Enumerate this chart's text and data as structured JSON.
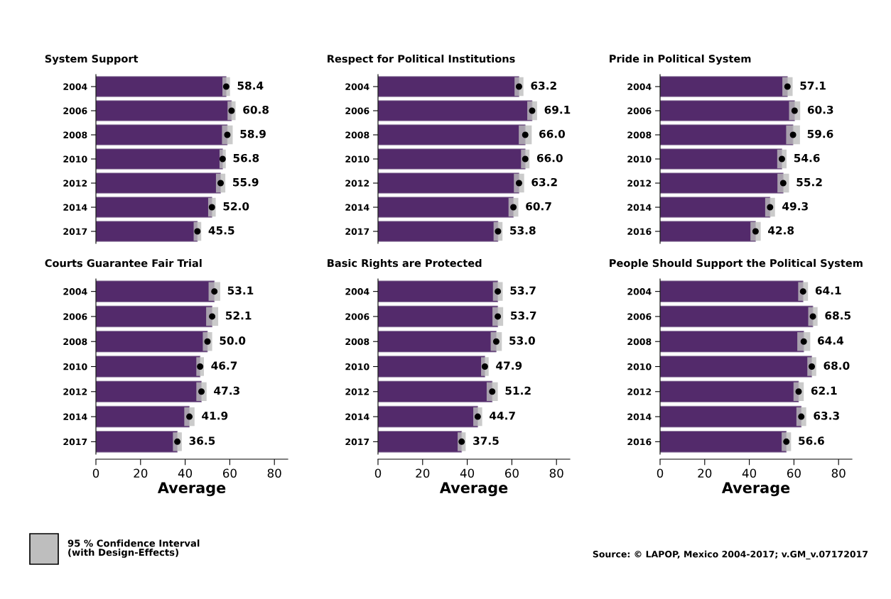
{
  "chart_data": [
    {
      "type": "bar",
      "orientation": "horizontal",
      "title": "System Support",
      "categories": [
        "2004",
        "2006",
        "2008",
        "2010",
        "2012",
        "2014",
        "2017"
      ],
      "xlim": [
        0,
        80
      ],
      "xticks": [
        0,
        20,
        40,
        60,
        80
      ],
      "tick_labels": "y",
      "grid": false,
      "marker": "circle",
      "series": [
        {
          "type": "bar",
          "color": "#532a6b",
          "values": [
            58.4,
            60.8,
            58.9,
            56.8,
            55.9,
            52.0,
            45.5
          ],
          "errors": [
            1.7,
            1.8,
            2.4,
            1.4,
            2.1,
            1.7,
            1.7
          ],
          "value_labels": [
            "58.4",
            "60.8",
            "58.9",
            "56.8",
            "55.9",
            "52.0",
            "45.5"
          ]
        },
        {
          "type": "scatter",
          "color": "#000000",
          "values": [
            58.4,
            60.8,
            58.9,
            56.8,
            55.9,
            52.0,
            45.5
          ]
        }
      ]
    },
    {
      "type": "bar",
      "orientation": "horizontal",
      "title": "Respect for Political Institutions",
      "categories": [
        "2004",
        "2006",
        "2008",
        "2010",
        "2012",
        "2014",
        "2017"
      ],
      "xlim": [
        0,
        80
      ],
      "xticks": [
        0,
        20,
        40,
        60,
        80
      ],
      "tick_labels": "y",
      "grid": false,
      "marker": "circle",
      "series": [
        {
          "type": "bar",
          "color": "#532a6b",
          "values": [
            63.2,
            69.1,
            66.0,
            66.0,
            63.2,
            60.7,
            53.8
          ],
          "errors": [
            2.0,
            2.2,
            2.9,
            1.9,
            2.3,
            2.2,
            2.0
          ],
          "value_labels": [
            "63.2",
            "69.1",
            "66.0",
            "66.0",
            "63.2",
            "60.7",
            "53.8"
          ]
        },
        {
          "type": "scatter",
          "color": "#000000",
          "values": [
            63.2,
            69.1,
            66.0,
            66.0,
            63.2,
            60.7,
            53.8
          ]
        }
      ]
    },
    {
      "type": "bar",
      "orientation": "horizontal",
      "title": "Pride in Political System",
      "categories": [
        "2004",
        "2006",
        "2008",
        "2010",
        "2012",
        "2014",
        "2016"
      ],
      "xlim": [
        0,
        80
      ],
      "xticks": [
        0,
        20,
        40,
        60,
        80
      ],
      "tick_labels": "y",
      "grid": false,
      "marker": "circle",
      "series": [
        {
          "type": "bar",
          "color": "#532a6b",
          "values": [
            57.1,
            60.3,
            59.6,
            54.6,
            55.2,
            49.3,
            42.8
          ],
          "errors": [
            2.3,
            2.5,
            3.1,
            2.1,
            2.6,
            2.2,
            2.3
          ],
          "value_labels": [
            "57.1",
            "60.3",
            "59.6",
            "54.6",
            "55.2",
            "49.3",
            "42.8"
          ]
        },
        {
          "type": "scatter",
          "color": "#000000",
          "values": [
            57.1,
            60.3,
            59.6,
            54.6,
            55.2,
            49.3,
            42.8
          ]
        }
      ]
    },
    {
      "type": "bar",
      "orientation": "horizontal",
      "title": "Courts Guarantee Fair Trial",
      "xlabel": "Average",
      "categories": [
        "2004",
        "2006",
        "2008",
        "2010",
        "2012",
        "2014",
        "2017"
      ],
      "xlim": [
        0,
        86
      ],
      "xticks": [
        0,
        20,
        40,
        60,
        80
      ],
      "grid": false,
      "marker": "circle",
      "annotations": [
        "95 % Confidence Interval\n(with Design-Effects)"
      ],
      "series": [
        {
          "type": "bar",
          "color": "#532a6b",
          "values": [
            53.1,
            52.1,
            50.0,
            46.7,
            47.3,
            41.9,
            36.5
          ],
          "errors": [
            2.6,
            2.7,
            2.1,
            1.7,
            2.3,
            2.3,
            2.0
          ],
          "value_labels": [
            "53.1",
            "52.1",
            "50.0",
            "46.7",
            "47.3",
            "41.9",
            "36.5"
          ]
        },
        {
          "type": "scatter",
          "color": "#000000",
          "values": [
            53.1,
            52.1,
            50.0,
            46.7,
            47.3,
            41.9,
            36.5
          ]
        }
      ]
    },
    {
      "type": "bar",
      "orientation": "horizontal",
      "title": "Basic Rights are Protected",
      "xlabel": "Average",
      "categories": [
        "2004",
        "2006",
        "2008",
        "2010",
        "2012",
        "2014",
        "2017"
      ],
      "xlim": [
        0,
        86
      ],
      "xticks": [
        0,
        20,
        40,
        60,
        80
      ],
      "grid": false,
      "marker": "circle",
      "series": [
        {
          "type": "bar",
          "color": "#532a6b",
          "values": [
            53.7,
            53.7,
            53.0,
            47.9,
            51.2,
            44.7,
            37.5
          ],
          "errors": [
            2.2,
            2.4,
            2.5,
            1.7,
            2.5,
            2.0,
            1.8
          ],
          "value_labels": [
            "53.7",
            "53.7",
            "53.0",
            "47.9",
            "51.2",
            "44.7",
            "37.5"
          ]
        },
        {
          "type": "scatter",
          "color": "#000000",
          "values": [
            53.7,
            53.7,
            53.0,
            47.9,
            51.2,
            44.7,
            37.5
          ]
        }
      ]
    },
    {
      "type": "bar",
      "orientation": "horizontal",
      "title": "People Should Support the Political System",
      "xlabel": "Average",
      "categories": [
        "2004",
        "2006",
        "2008",
        "2010",
        "2012",
        "2014",
        "2016"
      ],
      "xlim": [
        0,
        86
      ],
      "xticks": [
        0,
        20,
        40,
        60,
        80
      ],
      "grid": false,
      "marker": "circle",
      "annotations": [
        "Source: © LAPOP, Mexico 2004-2017; v.GM_v.07172017"
      ],
      "series": [
        {
          "type": "bar",
          "color": "#532a6b",
          "values": [
            64.1,
            68.5,
            64.4,
            68.0,
            62.1,
            63.3,
            56.6
          ],
          "errors": [
            2.2,
            2.1,
            2.9,
            2.0,
            2.3,
            2.2,
            2.1
          ],
          "value_labels": [
            "64.1",
            "68.5",
            "64.4",
            "68.0",
            "62.1",
            "63.3",
            "56.6"
          ]
        },
        {
          "type": "scatter",
          "color": "#000000",
          "values": [
            64.1,
            68.5,
            64.4,
            68.0,
            62.1,
            63.3,
            56.6
          ]
        }
      ]
    }
  ]
}
